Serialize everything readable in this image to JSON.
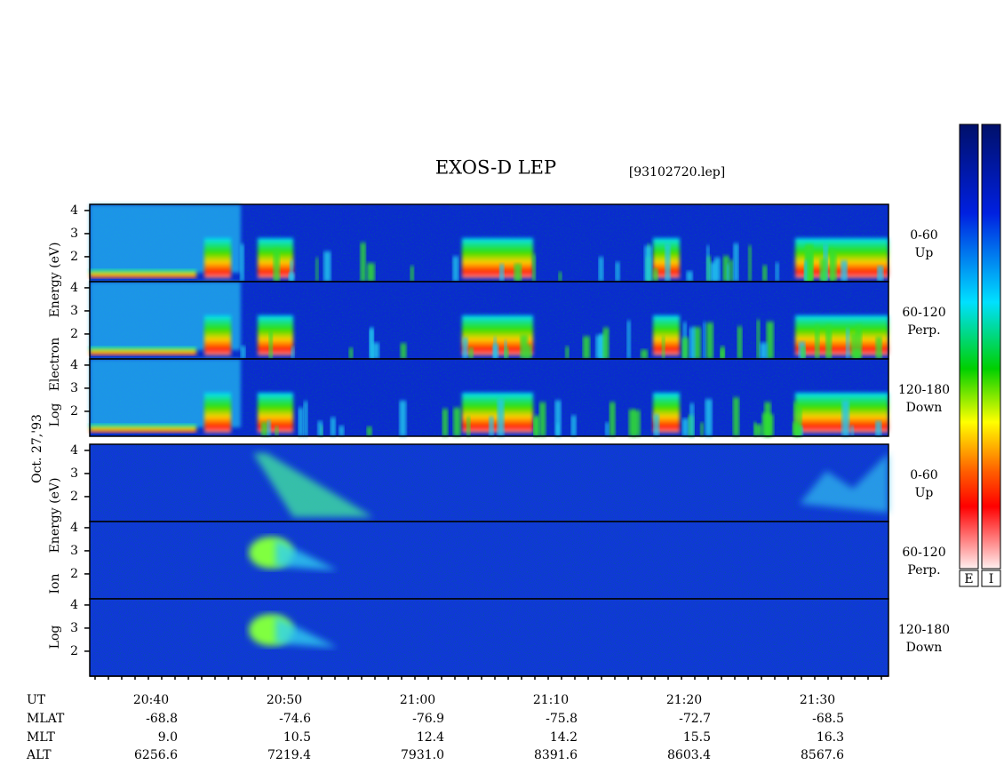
{
  "title": "EXOS-D LEP",
  "file": "[93102720.lep]",
  "date": "Oct. 27,'93",
  "yticks": [
    2,
    3,
    4
  ],
  "species": [
    {
      "axis_label": [
        "Log",
        "Electron",
        "Energy (eV)"
      ],
      "panels": [
        {
          "range": "0-60",
          "direction": "Up"
        },
        {
          "range": "60-120",
          "direction": "Perp."
        },
        {
          "range": "120-180",
          "direction": "Down"
        }
      ]
    },
    {
      "axis_label": [
        "Log",
        "Ion",
        "Energy (eV)"
      ],
      "panels": [
        {
          "range": "0-60",
          "direction": "Up"
        },
        {
          "range": "60-120",
          "direction": "Perp."
        },
        {
          "range": "120-180",
          "direction": "Down"
        }
      ]
    }
  ],
  "colorbars": [
    "E",
    "I"
  ],
  "table": {
    "row_labels": [
      "UT",
      "MLAT",
      "MLT",
      "ALT"
    ],
    "columns": [
      [
        "20:40",
        "-68.8",
        "9.0",
        "6256.6"
      ],
      [
        "20:50",
        "-74.6",
        "10.5",
        "7219.4"
      ],
      [
        "21:00",
        "-76.9",
        "12.4",
        "7931.0"
      ],
      [
        "21:10",
        "-75.8",
        "14.2",
        "8391.6"
      ],
      [
        "21:20",
        "-72.7",
        "15.5",
        "8603.4"
      ],
      [
        "21:30",
        "-68.5",
        "16.3",
        "8567.6"
      ]
    ]
  }
}
